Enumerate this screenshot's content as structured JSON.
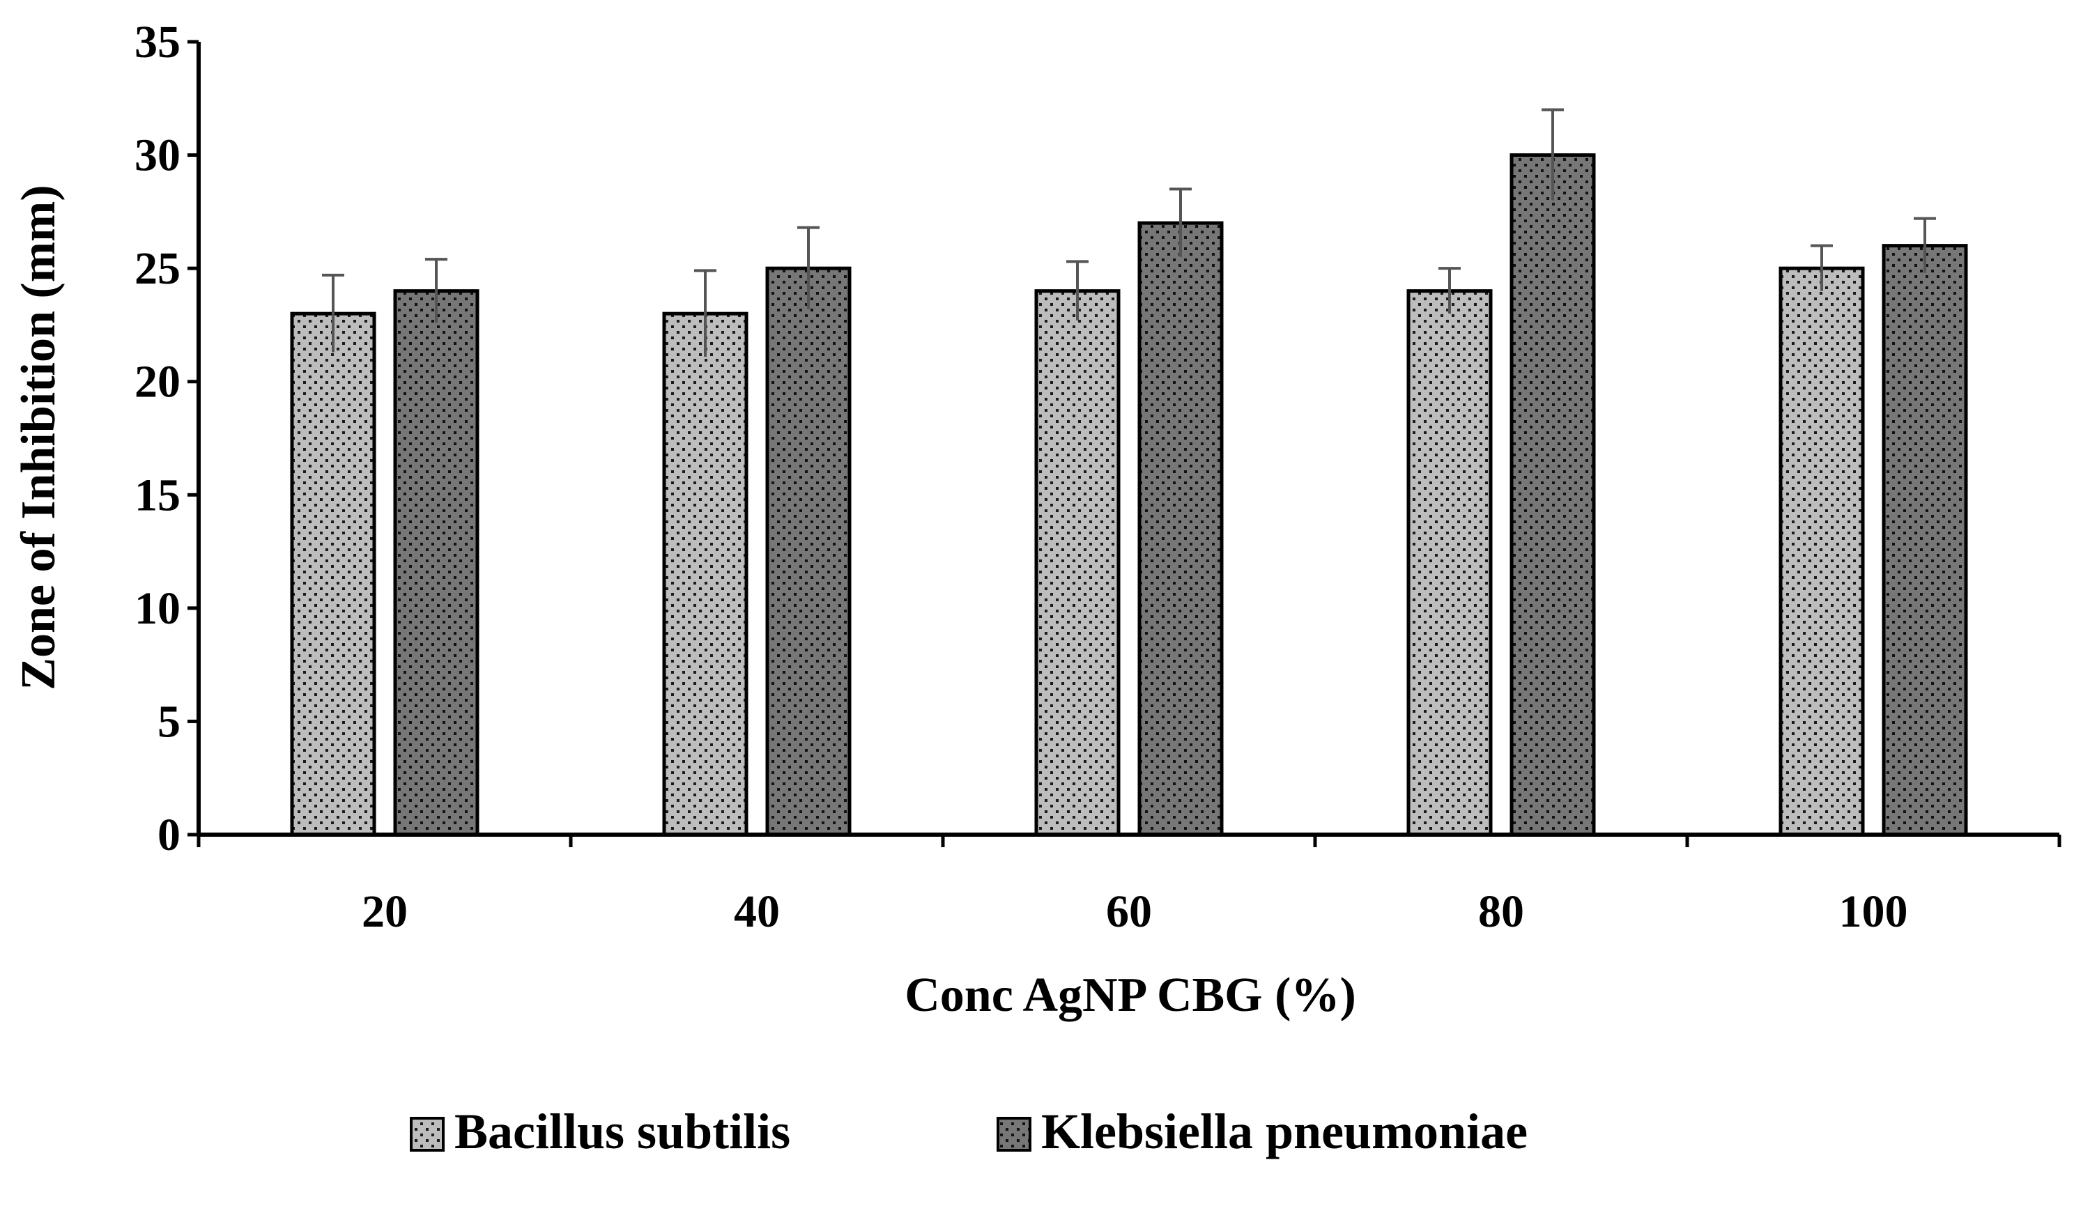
{
  "chart_data": {
    "type": "bar",
    "title": "",
    "xlabel": "Conc AgNP CBG (%)",
    "ylabel": "Zone of Inhibition (mm)",
    "categories": [
      "20",
      "40",
      "60",
      "80",
      "100"
    ],
    "ylim": [
      0,
      35
    ],
    "yticks": [
      0,
      5,
      10,
      15,
      20,
      25,
      30,
      35
    ],
    "grid": false,
    "legend_position": "bottom",
    "series": [
      {
        "name": "Bacillus subtilis",
        "values": [
          23,
          23,
          24,
          24,
          25
        ],
        "errors": [
          1.7,
          1.9,
          1.3,
          1.0,
          1.0
        ],
        "color": "#b4b4b4"
      },
      {
        "name": "Klebsiella pneumoniae",
        "values": [
          24,
          25,
          27,
          30,
          26
        ],
        "errors": [
          1.4,
          1.8,
          1.5,
          2.0,
          1.2
        ],
        "color": "#6e6e6e"
      }
    ]
  }
}
